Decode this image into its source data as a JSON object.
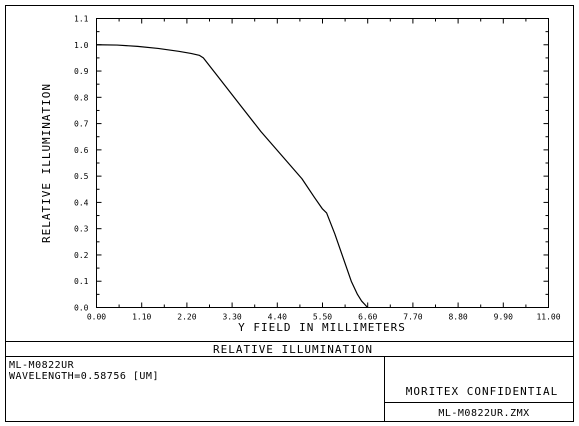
{
  "chart_data": {
    "type": "line",
    "title": "",
    "xlabel": "Y FIELD IN MILLIMETERS",
    "ylabel": "RELATIVE ILLUMINATION",
    "xlim": [
      0,
      11
    ],
    "ylim": [
      0,
      1.1
    ],
    "grid": false,
    "x_ticks": [
      "0.00",
      "1.10",
      "2.20",
      "3.30",
      "4.40",
      "5.50",
      "6.60",
      "7.70",
      "8.80",
      "9.90",
      "11.00"
    ],
    "y_ticks": [
      "0.0",
      "0.1",
      "0.2",
      "0.3",
      "0.4",
      "0.5",
      "0.6",
      "0.7",
      "0.8",
      "0.9",
      "1.0",
      "1.1"
    ],
    "series": [
      {
        "name": "",
        "color": "#000000",
        "x": [
          0.0,
          0.5,
          1.0,
          1.5,
          2.0,
          2.3,
          2.5,
          2.6,
          3.0,
          3.5,
          4.0,
          4.5,
          5.0,
          5.3,
          5.5,
          5.6,
          5.8,
          6.0,
          6.2,
          6.35,
          6.45,
          6.55,
          6.6
        ],
        "y": [
          1.0,
          0.999,
          0.994,
          0.986,
          0.975,
          0.967,
          0.96,
          0.95,
          0.87,
          0.77,
          0.67,
          0.58,
          0.49,
          0.42,
          0.375,
          0.36,
          0.28,
          0.19,
          0.1,
          0.05,
          0.025,
          0.008,
          0.0
        ]
      }
    ]
  },
  "footer": {
    "caption": "RELATIVE ILLUMINATION",
    "lens_name": "ML-M0822UR",
    "wavelength": "WAVELENGTH=0.58756 [UM]",
    "company": "MORITEX CONFIDENTIAL",
    "file_name": "ML-M0822UR.ZMX"
  }
}
